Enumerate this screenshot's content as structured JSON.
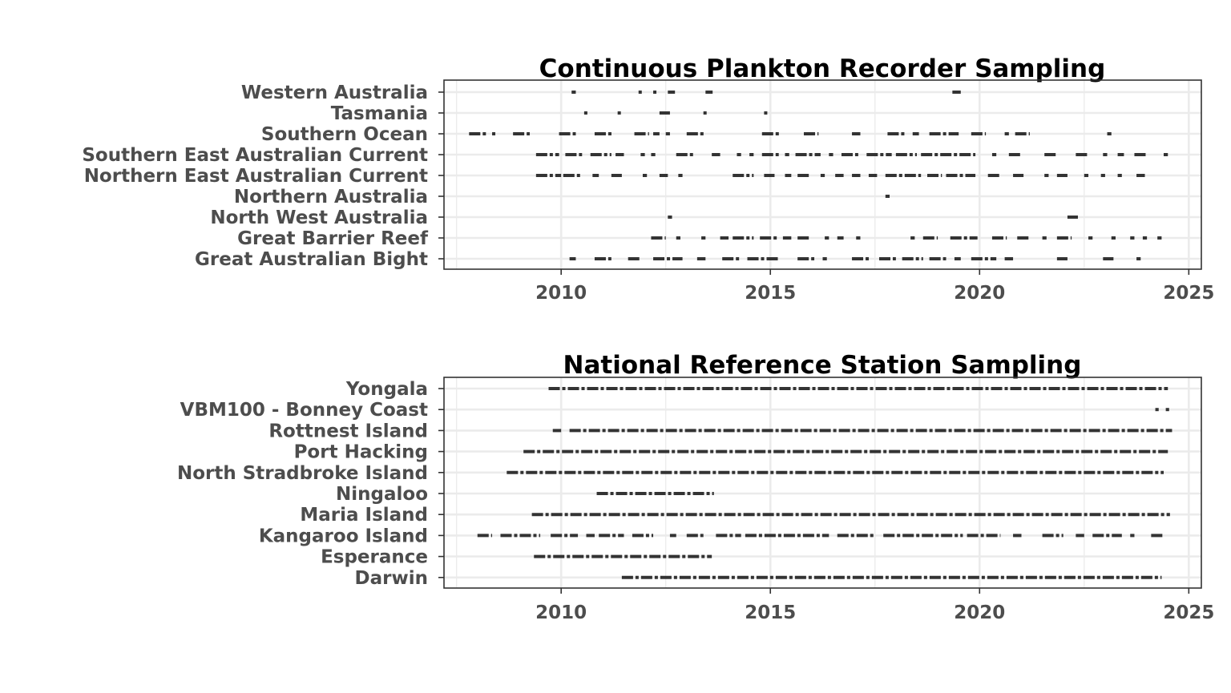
{
  "chart_data": [
    {
      "type": "scatter",
      "title": "Continuous Plankton Recorder Sampling",
      "xlabel": "",
      "ylabel": "",
      "xlim": [
        2007.2,
        2025.3
      ],
      "x_ticks": [
        "2010",
        "2015",
        "2020",
        "2025"
      ],
      "x_tick_values": [
        2010,
        2015,
        2020,
        2025
      ],
      "grid": true,
      "legend": "none",
      "mark_color": "#333333",
      "categories": [
        "Western Australia",
        "Tasmania",
        "Southern Ocean",
        "Southern East Australian Current",
        "Northern East Australian Current",
        "Northern Australia",
        "North West Australia",
        "Great Barrier Reef",
        "Great Australian Bight"
      ],
      "series": [
        {
          "category": "Western Australia",
          "segments": [
            [
              2010.25,
              2010.35
            ],
            [
              2011.85,
              2011.92
            ],
            [
              2012.2,
              2012.27
            ],
            [
              2012.55,
              2012.72
            ],
            [
              2013.45,
              2013.62
            ],
            [
              2019.35,
              2019.55
            ]
          ]
        },
        {
          "category": "Tasmania",
          "segments": [
            [
              2010.55,
              2010.62
            ],
            [
              2011.35,
              2011.42
            ],
            [
              2012.35,
              2012.6
            ],
            [
              2013.4,
              2013.47
            ],
            [
              2014.85,
              2014.92
            ]
          ]
        },
        {
          "category": "Southern Ocean",
          "segments": [
            [
              2007.8,
              2008.25
            ],
            [
              2008.35,
              2008.42
            ],
            [
              2008.85,
              2009.25
            ],
            [
              2009.95,
              2010.35
            ],
            [
              2010.8,
              2011.25
            ],
            [
              2011.75,
              2012.1
            ],
            [
              2012.2,
              2012.35
            ],
            [
              2012.5,
              2012.6
            ],
            [
              2013.0,
              2013.45
            ],
            [
              2014.8,
              2015.25
            ],
            [
              2015.8,
              2016.15
            ],
            [
              2016.95,
              2017.15
            ],
            [
              2017.8,
              2018.25
            ],
            [
              2018.4,
              2018.55
            ],
            [
              2018.8,
              2019.5
            ],
            [
              2019.8,
              2020.15
            ],
            [
              2020.6,
              2020.7
            ],
            [
              2020.85,
              2021.2
            ],
            [
              2023.05,
              2023.15
            ]
          ]
        },
        {
          "category": "Southern East Australian Current",
          "segments": [
            [
              2009.4,
              2009.95
            ],
            [
              2010.1,
              2010.5
            ],
            [
              2010.7,
              2011.2
            ],
            [
              2011.3,
              2011.5
            ],
            [
              2011.9,
              2012.0
            ],
            [
              2012.15,
              2012.25
            ],
            [
              2012.75,
              2013.2
            ],
            [
              2013.6,
              2013.8
            ],
            [
              2014.2,
              2014.3
            ],
            [
              2014.5,
              2014.6
            ],
            [
              2014.8,
              2015.2
            ],
            [
              2015.35,
              2015.45
            ],
            [
              2015.6,
              2016.2
            ],
            [
              2016.4,
              2016.5
            ],
            [
              2016.7,
              2017.1
            ],
            [
              2017.3,
              2017.9
            ],
            [
              2018.0,
              2018.5
            ],
            [
              2018.6,
              2019.9
            ],
            [
              2020.3,
              2020.4
            ],
            [
              2020.7,
              2021.0
            ],
            [
              2021.55,
              2021.85
            ],
            [
              2022.3,
              2022.6
            ],
            [
              2022.95,
              2023.05
            ],
            [
              2023.3,
              2023.45
            ],
            [
              2023.7,
              2024.0
            ],
            [
              2024.4,
              2024.5
            ]
          ]
        },
        {
          "category": "Northern East Australian Current",
          "segments": [
            [
              2009.4,
              2010.0
            ],
            [
              2010.05,
              2010.5
            ],
            [
              2010.75,
              2010.9
            ],
            [
              2011.2,
              2011.45
            ],
            [
              2011.95,
              2012.05
            ],
            [
              2012.35,
              2012.55
            ],
            [
              2012.8,
              2012.9
            ],
            [
              2014.1,
              2014.6
            ],
            [
              2014.85,
              2015.1
            ],
            [
              2015.35,
              2015.5
            ],
            [
              2015.65,
              2015.95
            ],
            [
              2016.2,
              2016.3
            ],
            [
              2016.55,
              2016.75
            ],
            [
              2016.95,
              2017.15
            ],
            [
              2017.35,
              2017.55
            ],
            [
              2017.75,
              2018.6
            ],
            [
              2018.75,
              2019.1
            ],
            [
              2019.2,
              2019.9
            ],
            [
              2020.2,
              2020.5
            ],
            [
              2020.8,
              2021.05
            ],
            [
              2021.55,
              2021.65
            ],
            [
              2021.85,
              2022.1
            ],
            [
              2022.5,
              2022.6
            ],
            [
              2022.9,
              2023.0
            ],
            [
              2023.3,
              2023.4
            ],
            [
              2023.75,
              2023.95
            ]
          ]
        },
        {
          "category": "Northern Australia",
          "segments": [
            [
              2017.75,
              2017.85
            ]
          ]
        },
        {
          "category": "North West Australia",
          "segments": [
            [
              2012.55,
              2012.65
            ],
            [
              2022.1,
              2022.35
            ]
          ]
        },
        {
          "category": "Great Barrier Reef",
          "segments": [
            [
              2012.15,
              2012.5
            ],
            [
              2012.75,
              2012.85
            ],
            [
              2013.35,
              2013.45
            ],
            [
              2013.8,
              2014.0
            ],
            [
              2014.1,
              2014.6
            ],
            [
              2014.75,
              2015.2
            ],
            [
              2015.3,
              2015.5
            ],
            [
              2015.65,
              2015.95
            ],
            [
              2016.3,
              2016.4
            ],
            [
              2016.6,
              2016.75
            ],
            [
              2017.05,
              2017.15
            ],
            [
              2018.35,
              2018.45
            ],
            [
              2018.65,
              2019.0
            ],
            [
              2019.3,
              2019.95
            ],
            [
              2020.3,
              2020.65
            ],
            [
              2020.9,
              2021.2
            ],
            [
              2021.5,
              2021.6
            ],
            [
              2021.85,
              2022.2
            ],
            [
              2022.6,
              2022.7
            ],
            [
              2023.15,
              2023.25
            ],
            [
              2023.6,
              2023.7
            ],
            [
              2023.9,
              2024.0
            ],
            [
              2024.25,
              2024.35
            ]
          ]
        },
        {
          "category": "Great Australian Bight",
          "segments": [
            [
              2010.2,
              2010.35
            ],
            [
              2010.8,
              2011.2
            ],
            [
              2011.6,
              2011.9
            ],
            [
              2012.2,
              2012.9
            ],
            [
              2013.25,
              2013.45
            ],
            [
              2013.85,
              2014.3
            ],
            [
              2014.45,
              2015.2
            ],
            [
              2015.65,
              2016.05
            ],
            [
              2016.25,
              2016.35
            ],
            [
              2016.95,
              2017.4
            ],
            [
              2017.6,
              2018.0
            ],
            [
              2018.15,
              2018.65
            ],
            [
              2018.8,
              2019.2
            ],
            [
              2019.4,
              2019.55
            ],
            [
              2019.8,
              2020.4
            ],
            [
              2020.6,
              2020.8
            ],
            [
              2021.85,
              2022.1
            ],
            [
              2022.95,
              2023.2
            ],
            [
              2023.75,
              2023.85
            ]
          ]
        }
      ]
    },
    {
      "type": "scatter",
      "title": "National Reference Station Sampling",
      "xlabel": "",
      "ylabel": "",
      "xlim": [
        2007.2,
        2025.3
      ],
      "x_ticks": [
        "2010",
        "2015",
        "2020",
        "2025"
      ],
      "x_tick_values": [
        2010,
        2015,
        2020,
        2025
      ],
      "grid": true,
      "legend": "none",
      "mark_color": "#333333",
      "categories": [
        "Yongala",
        "VBM100 - Bonney Coast",
        "Rottnest Island",
        "Port Hacking",
        "North Stradbroke Island",
        "Ningaloo",
        "Maria Island",
        "Kangaroo Island",
        "Esperance",
        "Darwin"
      ],
      "series": [
        {
          "category": "Yongala",
          "segments": [
            [
              2009.7,
              2024.5
            ]
          ]
        },
        {
          "category": "VBM100 - Bonney Coast",
          "segments": [
            [
              2024.2,
              2024.28
            ],
            [
              2024.45,
              2024.53
            ]
          ]
        },
        {
          "category": "Rottnest Island",
          "segments": [
            [
              2009.8,
              2010.0
            ],
            [
              2010.2,
              2024.6
            ]
          ]
        },
        {
          "category": "Port Hacking",
          "segments": [
            [
              2009.1,
              2024.5
            ]
          ]
        },
        {
          "category": "North Stradbroke Island",
          "segments": [
            [
              2008.7,
              2024.4
            ]
          ]
        },
        {
          "category": "Ningaloo",
          "segments": [
            [
              2010.85,
              2013.65
            ]
          ]
        },
        {
          "category": "Maria Island",
          "segments": [
            [
              2009.3,
              2024.55
            ]
          ]
        },
        {
          "category": "Kangaroo Island",
          "segments": [
            [
              2008.0,
              2008.35
            ],
            [
              2008.55,
              2009.5
            ],
            [
              2009.75,
              2010.4
            ],
            [
              2010.6,
              2010.8
            ],
            [
              2010.9,
              2011.5
            ],
            [
              2011.7,
              2012.2
            ],
            [
              2012.6,
              2012.75
            ],
            [
              2013.0,
              2013.4
            ],
            [
              2013.7,
              2014.3
            ],
            [
              2014.4,
              2016.4
            ],
            [
              2016.6,
              2017.5
            ],
            [
              2017.7,
              2019.6
            ],
            [
              2019.7,
              2020.5
            ],
            [
              2020.8,
              2021.0
            ],
            [
              2021.5,
              2022.0
            ],
            [
              2022.3,
              2022.5
            ],
            [
              2022.7,
              2023.4
            ],
            [
              2023.6,
              2023.7
            ],
            [
              2024.1,
              2024.4
            ]
          ]
        },
        {
          "category": "Esperance",
          "segments": [
            [
              2009.35,
              2013.6
            ]
          ]
        },
        {
          "category": "Darwin",
          "segments": [
            [
              2011.45,
              2024.35
            ]
          ]
        }
      ]
    }
  ]
}
